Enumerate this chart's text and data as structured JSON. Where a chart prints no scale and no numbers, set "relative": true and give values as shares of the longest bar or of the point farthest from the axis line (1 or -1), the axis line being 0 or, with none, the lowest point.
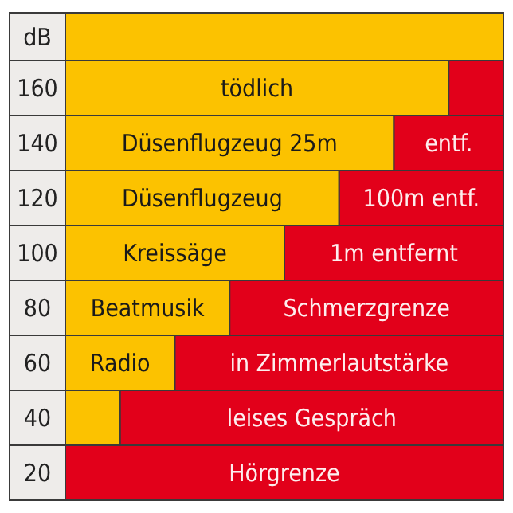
{
  "chart_data": {
    "type": "bar",
    "orientation": "horizontal",
    "stacked": true,
    "relative": true,
    "ylabel": "dB",
    "categories": [
      "160",
      "140",
      "120",
      "100",
      "80",
      "60",
      "40",
      "20"
    ],
    "series": [
      {
        "color": "#fcc200",
        "values": [
          0.875,
          0.75,
          0.625,
          0.5,
          0.375,
          0.25,
          0.125,
          0
        ]
      },
      {
        "color": "#e2001a",
        "values": [
          0.125,
          0.25,
          0.375,
          0.5,
          0.625,
          0.75,
          0.875,
          1
        ]
      }
    ],
    "annotations": [
      {
        "text": "tödlich",
        "x": 0.4375,
        "y": "160"
      },
      {
        "text": "Düsenflugzeug 25m",
        "x": 0.375,
        "y": "140"
      },
      {
        "text": "entf.",
        "x": 0.875,
        "y": "140"
      },
      {
        "text": "Düsenflugzeug",
        "x": 0.3125,
        "y": "120"
      },
      {
        "text": "100m entf.",
        "x": 0.8125,
        "y": "120"
      },
      {
        "text": "Kreissäge",
        "x": 0.25,
        "y": "100"
      },
      {
        "text": "1m entfernt",
        "x": 0.75,
        "y": "100"
      },
      {
        "text": "Beatmusik",
        "x": 0.1875,
        "y": "80"
      },
      {
        "text": "Schmerzgrenze",
        "x": 0.6875,
        "y": "80"
      },
      {
        "text": "Radio",
        "x": 0.125,
        "y": "60"
      },
      {
        "text": "in Zimmerlautstärke",
        "x": 0.625,
        "y": "60"
      },
      {
        "text": "leises Gespräch",
        "x": 0.5625,
        "y": "40"
      },
      {
        "text": "Hörgrenze",
        "x": 0.5,
        "y": "20"
      }
    ]
  }
}
